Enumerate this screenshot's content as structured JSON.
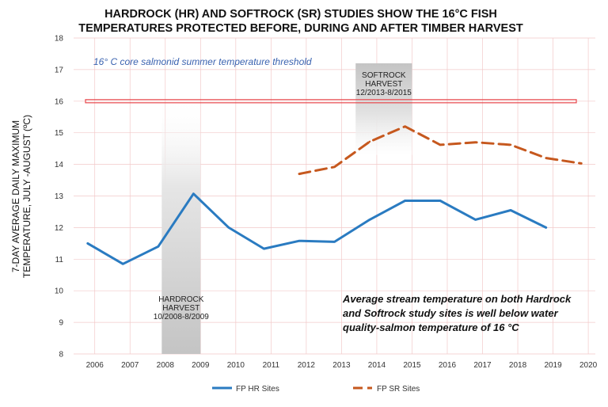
{
  "chart_data": {
    "type": "line",
    "title": [
      "HARDROCK (HR) AND SOFTROCK (SR) STUDIES SHOW THE 16°C FISH",
      "TEMPERATURES PROTECTED BEFORE, DURING AND AFTER TIMBER HARVEST"
    ],
    "ylabel": [
      "7-DAY AVERAGE DAILY MAXIMUM",
      "TEMPERATURE, JULY -AUGUST (ºC)"
    ],
    "xlabel": "",
    "ylim": [
      8,
      18
    ],
    "yticks": [
      "8",
      "9",
      "10",
      "11",
      "12",
      "13",
      "14",
      "15",
      "16",
      "17",
      "18"
    ],
    "xlim": [
      2005.4,
      2020.2
    ],
    "xticks": [
      "2006",
      "2007",
      "2008",
      "2009",
      "2010",
      "2011",
      "2012",
      "2013",
      "2014",
      "2015",
      "2016",
      "2017",
      "2018",
      "2019",
      "2020"
    ],
    "threshold": {
      "value": 16,
      "label": "16° C core salmonid summer temperature threshold",
      "color": "#e8494e"
    },
    "bands": [
      {
        "name": "hardrock-harvest",
        "label": [
          "HARDROCK",
          "HARVEST",
          "10/2008-8/2009"
        ],
        "x0": 2007.9,
        "x1": 2009.0,
        "y0": 8,
        "y1": 16.2
      },
      {
        "name": "softrock-harvest",
        "label": [
          "SOFTROCK",
          "HARVEST",
          "12/2013-8/2015"
        ],
        "x0": 2013.4,
        "x1": 2015.0,
        "y0": 14.3,
        "y1": 17.2
      }
    ],
    "series": [
      {
        "name": "FP HR Sites",
        "color": "#2a7bc1",
        "dash": "none",
        "x": [
          2005.8,
          2006.8,
          2007.8,
          2008.8,
          2009.8,
          2010.8,
          2011.8,
          2012.8,
          2013.8,
          2014.8,
          2015.8,
          2016.8,
          2017.8,
          2018.8
        ],
        "values": [
          11.5,
          10.85,
          11.4,
          13.07,
          12.0,
          11.33,
          11.58,
          11.55,
          12.25,
          12.85,
          12.85,
          12.25,
          12.55,
          12.0
        ]
      },
      {
        "name": "FP SR Sites",
        "color": "#c6581e",
        "dash": "14,7",
        "x": [
          2011.8,
          2012.8,
          2013.8,
          2014.8,
          2015.8,
          2016.8,
          2017.8,
          2018.8,
          2019.8
        ],
        "values": [
          13.7,
          13.92,
          14.72,
          15.2,
          14.62,
          14.7,
          14.62,
          14.2,
          14.03
        ]
      }
    ],
    "annotation": [
      "Average stream temperature on  both Hardrock",
      "and Softrock study sites is well below water",
      "quality-salmon temperature of 16 °C"
    ],
    "legend": "bottom"
  }
}
